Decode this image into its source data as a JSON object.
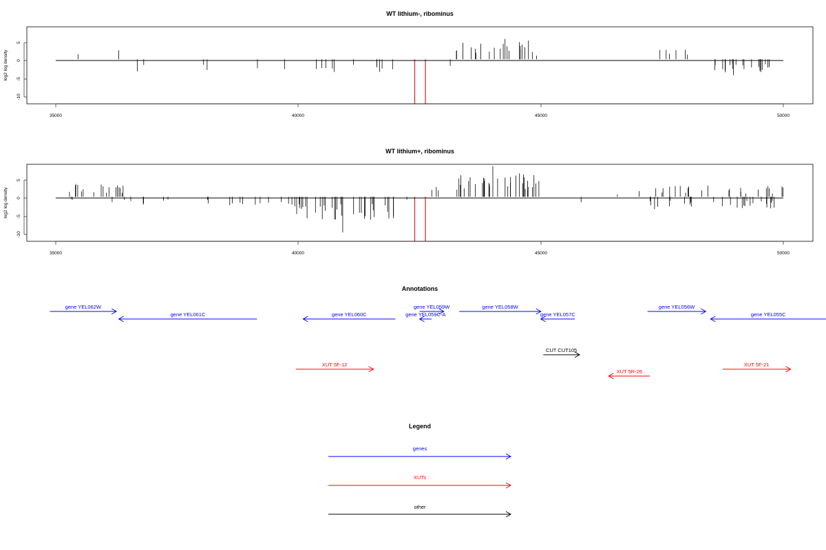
{
  "chart_data": [
    {
      "type": "bar",
      "title": "WT lithium-, ribominus",
      "ylabel": "log2 log density",
      "xlim": [
        35000,
        50000
      ],
      "ylim": [
        -11,
        8
      ],
      "xticks": [
        "35000",
        "40000",
        "45000",
        "50000"
      ],
      "yticks": [
        "5",
        "0",
        "-5",
        "-10"
      ],
      "highlight_color": "#cc2222",
      "highlight_bars": [
        {
          "x": 42400,
          "y": -11
        },
        {
          "x": 42620,
          "y": -11
        }
      ],
      "segments": [
        {
          "from": 35000,
          "to": 35700,
          "sign": 1,
          "density": 0.018,
          "base": 2.0
        },
        {
          "from": 35700,
          "to": 36300,
          "sign": 1,
          "density": 0.012,
          "base": 2.3
        },
        {
          "from": 36300,
          "to": 38500,
          "sign": -1,
          "density": 0.016,
          "base": -2.6
        },
        {
          "from": 38500,
          "to": 39900,
          "sign": -1,
          "density": 0.012,
          "base": -2.2
        },
        {
          "from": 39900,
          "to": 42000,
          "sign": -1,
          "density": 0.05,
          "base": -3.2
        },
        {
          "from": 42000,
          "to": 43200,
          "sign": -1,
          "density": 0.004,
          "base": -1.5
        },
        {
          "from": 43250,
          "to": 44900,
          "sign": 1,
          "density": 0.13,
          "base": 3.4
        },
        {
          "from": 44900,
          "to": 47200,
          "sign": 1,
          "density": 0.004,
          "base": 1.5
        },
        {
          "from": 47200,
          "to": 48400,
          "sign": 1,
          "density": 0.05,
          "base": 2.4
        },
        {
          "from": 48400,
          "to": 50000,
          "sign": -1,
          "density": 0.13,
          "base": -3.2
        }
      ]
    },
    {
      "type": "bar",
      "title": "WT lithium+, ribominus",
      "ylabel": "log2 log density",
      "xlim": [
        35000,
        50000
      ],
      "ylim": [
        -11,
        8
      ],
      "xticks": [
        "35000",
        "40000",
        "45000",
        "50000"
      ],
      "yticks": [
        "5",
        "0",
        "-5",
        "-10"
      ],
      "highlight_color": "#cc2222",
      "highlight_bars": [
        {
          "x": 42400,
          "y": -11
        },
        {
          "x": 42620,
          "y": -11
        }
      ],
      "segments": [
        {
          "from": 35000,
          "to": 36400,
          "sign": 1,
          "density": 0.12,
          "base": 2.6
        },
        {
          "from": 35000,
          "to": 36400,
          "sign": -1,
          "density": 0.02,
          "base": -1.2
        },
        {
          "from": 36400,
          "to": 39900,
          "sign": -1,
          "density": 0.05,
          "base": -1.8
        },
        {
          "from": 39900,
          "to": 42000,
          "sign": -1,
          "density": 0.16,
          "base": -5.0
        },
        {
          "from": 42000,
          "to": 42500,
          "sign": -1,
          "density": 0.01,
          "base": -1.5
        },
        {
          "from": 42500,
          "to": 43300,
          "sign": 1,
          "density": 0.05,
          "base": 2.2
        },
        {
          "from": 43300,
          "to": 45000,
          "sign": 1,
          "density": 0.2,
          "base": 4.4
        },
        {
          "from": 45000,
          "to": 47000,
          "sign": 1,
          "density": 0.006,
          "base": 1.2
        },
        {
          "from": 45000,
          "to": 47000,
          "sign": -1,
          "density": 0.006,
          "base": -1.2
        },
        {
          "from": 47000,
          "to": 50000,
          "sign": 1,
          "density": 0.08,
          "base": 2.2
        },
        {
          "from": 47000,
          "to": 50000,
          "sign": -1,
          "density": 0.09,
          "base": -2.6
        }
      ]
    }
  ],
  "annotations": {
    "title": "Annotations",
    "xlim": [
      35000,
      50000
    ],
    "features": [
      {
        "label": "gene YEL062W",
        "type": "gene",
        "strand": "+",
        "from": 34880,
        "to": 36250,
        "row": 0
      },
      {
        "label": "gene YEL061C",
        "type": "gene",
        "strand": "-",
        "from": 36300,
        "to": 39150,
        "row": 1
      },
      {
        "label": "gene YEL060C",
        "type": "gene",
        "strand": "-",
        "from": 40100,
        "to": 42000,
        "row": 1
      },
      {
        "label": "gene YEL059W",
        "type": "gene",
        "strand": "+",
        "from": 42500,
        "to": 43000,
        "row": 0
      },
      {
        "label": "gene YEL059C-A",
        "type": "gene",
        "strand": "-",
        "from": 42500,
        "to": 42750,
        "row": 1
      },
      {
        "label": "gene YEL058W",
        "type": "gene",
        "strand": "+",
        "from": 43320,
        "to": 45000,
        "row": 0
      },
      {
        "label": "gene YEL057C",
        "type": "gene",
        "strand": "-",
        "from": 45000,
        "to": 45700,
        "row": 1
      },
      {
        "label": "gene YEL056W",
        "type": "gene",
        "strand": "+",
        "from": 47200,
        "to": 48400,
        "row": 0
      },
      {
        "label": "gene YEL055C",
        "type": "gene",
        "strand": "-",
        "from": 48500,
        "to": 51400,
        "row": 1
      },
      {
        "label": "CUT CUT105",
        "type": "other",
        "strand": "+",
        "from": 45050,
        "to": 45800,
        "row": 2
      },
      {
        "label": "XUT 5F-12",
        "type": "xut",
        "strand": "+",
        "from": 39950,
        "to": 41550,
        "row": 3
      },
      {
        "label": "XUT 5R-26",
        "type": "xut",
        "strand": "-",
        "from": 46400,
        "to": 47250,
        "row": 4
      },
      {
        "label": "XUT 5F-21",
        "type": "xut",
        "strand": "+",
        "from": 48750,
        "to": 50150,
        "row": 3
      }
    ]
  },
  "legend": {
    "title": "Legend",
    "items": [
      {
        "label": "genes",
        "color": "#0000ff"
      },
      {
        "label": "XUTs",
        "color": "#ff0000"
      },
      {
        "label": "other",
        "color": "#000000"
      }
    ]
  },
  "colors": {
    "gene": "#0000ff",
    "xut": "#ff0000",
    "other": "#000000",
    "bars": "#000000"
  }
}
